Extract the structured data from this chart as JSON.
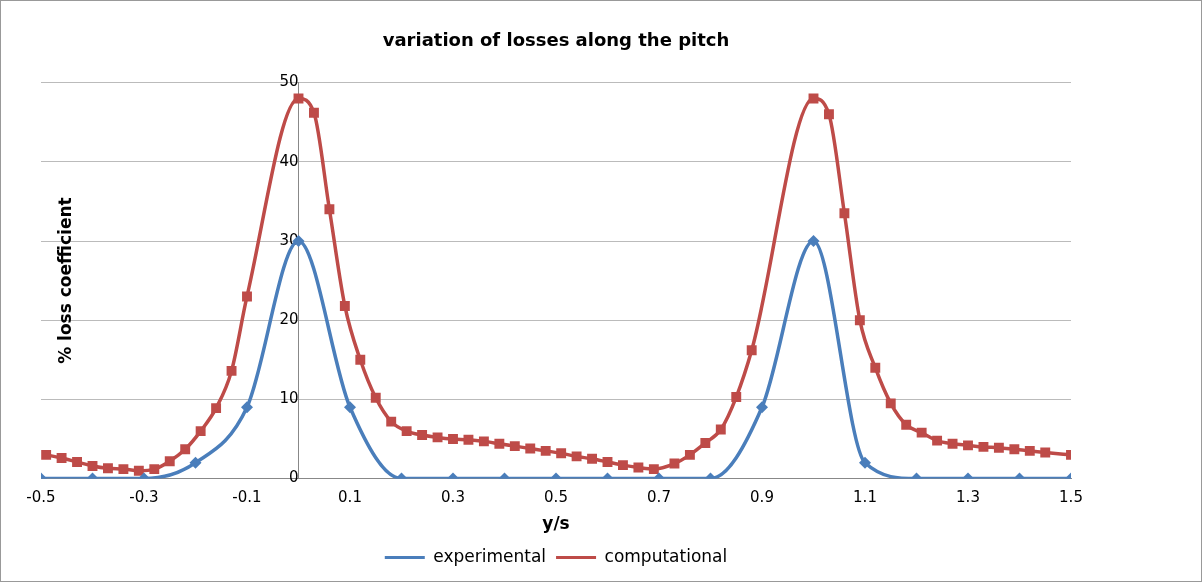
{
  "chart_data": {
    "type": "line",
    "title": "variation of losses along the pitch",
    "xlabel": "y/s",
    "ylabel": "% loss coefficient",
    "xlim": [
      -0.5,
      1.5
    ],
    "xticks": [
      -0.5,
      -0.3,
      -0.1,
      0.1,
      0.3,
      0.5,
      0.7,
      0.9,
      1.1,
      1.3,
      1.5
    ],
    "ylim": [
      0,
      50
    ],
    "yticks": [
      0,
      10,
      20,
      30,
      40,
      50
    ],
    "grid": "y",
    "legend": "bottom",
    "line_style": "solid",
    "series": [
      {
        "name": "experimental",
        "color": "#4a7ebb",
        "marker": "diamond",
        "x": [
          -0.5,
          -0.4,
          -0.3,
          -0.2,
          -0.1,
          0,
          0.1,
          0.2,
          0.3,
          0.4,
          0.5,
          0.6,
          0.7,
          0.8,
          0.9,
          1.0,
          1.1,
          1.2,
          1.3,
          1.4,
          1.5
        ],
        "values": [
          0,
          0,
          0,
          2,
          9,
          30,
          9,
          0,
          0,
          0,
          0,
          0,
          0,
          0,
          9,
          30,
          2,
          0,
          0,
          0,
          0
        ]
      },
      {
        "name": "computational",
        "color": "#be4b48",
        "marker": "square",
        "x": [
          -0.49,
          -0.46,
          -0.43,
          -0.4,
          -0.37,
          -0.34,
          -0.31,
          -0.28,
          -0.25,
          -0.22,
          -0.19,
          -0.16,
          -0.13,
          -0.1,
          0,
          0.03,
          0.06,
          0.09,
          0.12,
          0.15,
          0.18,
          0.21,
          0.24,
          0.27,
          0.3,
          0.33,
          0.36,
          0.39,
          0.42,
          0.45,
          0.48,
          0.51,
          0.54,
          0.57,
          0.6,
          0.63,
          0.66,
          0.69,
          0.73,
          0.76,
          0.79,
          0.82,
          0.85,
          0.88,
          1.0,
          1.03,
          1.06,
          1.09,
          1.12,
          1.15,
          1.18,
          1.21,
          1.24,
          1.27,
          1.3,
          1.33,
          1.36,
          1.39,
          1.42,
          1.45,
          1.5
        ],
        "values": [
          3.0,
          2.6,
          2.1,
          1.6,
          1.3,
          1.2,
          1.0,
          1.2,
          2.2,
          3.7,
          6.0,
          8.9,
          13.6,
          23,
          48,
          46.2,
          34,
          21.8,
          15,
          10.2,
          7.2,
          6.0,
          5.5,
          5.2,
          5.0,
          4.9,
          4.7,
          4.4,
          4.1,
          3.8,
          3.5,
          3.2,
          2.8,
          2.5,
          2.1,
          1.7,
          1.4,
          1.2,
          1.9,
          3.0,
          4.5,
          6.2,
          10.3,
          16.2,
          48,
          46,
          33.5,
          20,
          14,
          9.5,
          6.8,
          5.8,
          4.8,
          4.4,
          4.2,
          4.0,
          3.9,
          3.7,
          3.5,
          3.3,
          3.0
        ]
      }
    ]
  }
}
